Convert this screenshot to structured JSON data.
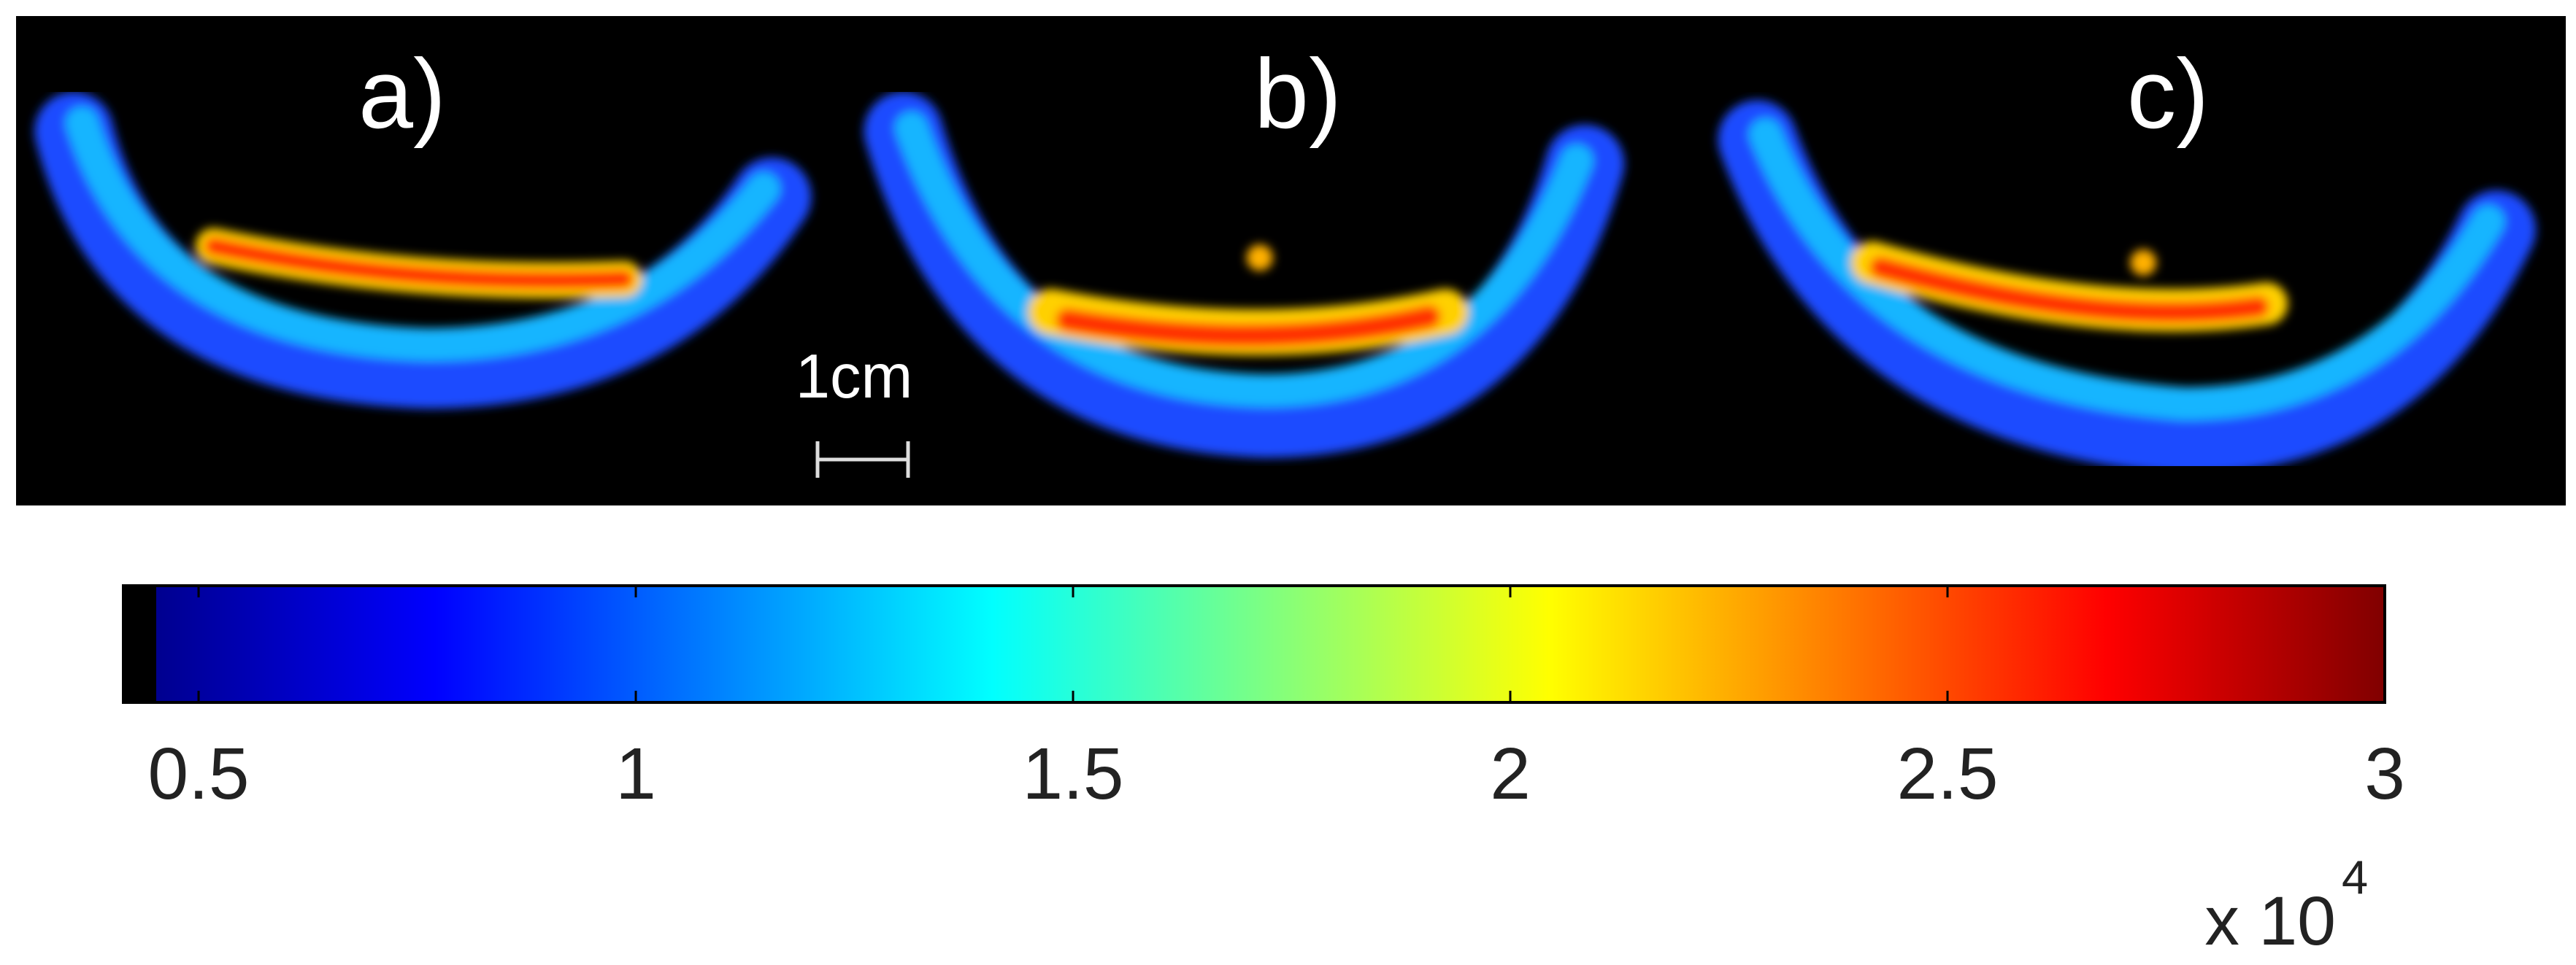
{
  "chart_data": {
    "type": "colorbar",
    "panel_labels": [
      "a)",
      "b)",
      "c)"
    ],
    "scale_bar_label": "1cm",
    "colormap": "jet",
    "clim": [
      0.414,
      3
    ],
    "ticks": [
      0.5,
      1,
      1.5,
      2,
      2.5,
      3
    ],
    "multiplier": "x 10",
    "multiplier_exponent": "4"
  }
}
